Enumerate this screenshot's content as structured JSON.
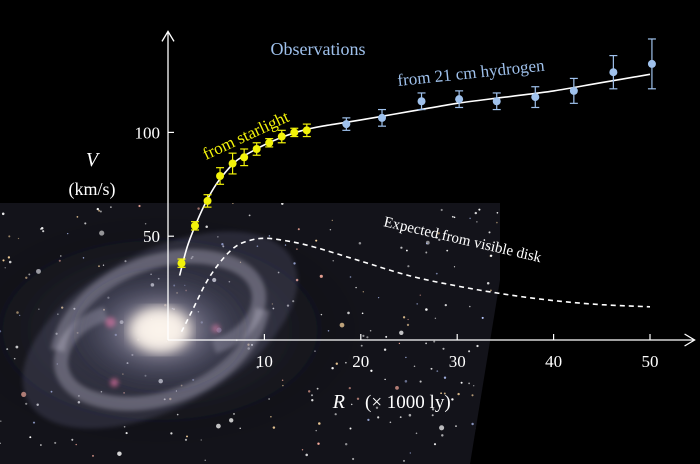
{
  "chart_data": {
    "type": "scatter",
    "xlabel_var": "R",
    "xlabel_unit": "(× 1000 ly)",
    "ylabel_var": "V",
    "ylabel_unit": "(km/s)",
    "xlim": [
      0,
      54
    ],
    "ylim": [
      0,
      140
    ],
    "x_ticks": [
      10,
      20,
      30,
      40,
      50
    ],
    "y_ticks": [
      50,
      100
    ],
    "title": "Observations",
    "series": [
      {
        "name": "from  starlight",
        "color": "#f2f20a",
        "points": [
          {
            "x": 1.4,
            "y": 37,
            "err": 2
          },
          {
            "x": 2.8,
            "y": 55,
            "err": 2
          },
          {
            "x": 4.1,
            "y": 67,
            "err": 3
          },
          {
            "x": 5.4,
            "y": 79,
            "err": 4
          },
          {
            "x": 6.7,
            "y": 85,
            "err": 5
          },
          {
            "x": 7.9,
            "y": 88,
            "err": 4
          },
          {
            "x": 9.2,
            "y": 92,
            "err": 3
          },
          {
            "x": 10.5,
            "y": 95,
            "err": 2
          },
          {
            "x": 11.8,
            "y": 98,
            "err": 3
          },
          {
            "x": 13.1,
            "y": 100,
            "err": 2
          },
          {
            "x": 14.4,
            "y": 101,
            "err": 3
          }
        ]
      },
      {
        "name": "from 21 cm hydrogen",
        "color": "#9fc1ec",
        "points": [
          {
            "x": 18.5,
            "y": 104,
            "err": 3
          },
          {
            "x": 22.2,
            "y": 107,
            "err": 4
          },
          {
            "x": 26.3,
            "y": 115,
            "err": 4
          },
          {
            "x": 30.2,
            "y": 116,
            "err": 4
          },
          {
            "x": 34.1,
            "y": 115,
            "err": 4
          },
          {
            "x": 38.1,
            "y": 117,
            "err": 5
          },
          {
            "x": 42.1,
            "y": 120,
            "err": 6
          },
          {
            "x": 46.2,
            "y": 129,
            "err": 8
          },
          {
            "x": 50.2,
            "y": 133,
            "err": 12
          }
        ]
      }
    ],
    "fit_curve": {
      "color": "#ffffff",
      "points": [
        [
          1.2,
          31
        ],
        [
          2,
          45
        ],
        [
          3,
          57
        ],
        [
          4,
          67
        ],
        [
          5,
          75
        ],
        [
          6,
          81
        ],
        [
          7,
          86
        ],
        [
          8,
          89
        ],
        [
          10,
          94
        ],
        [
          12,
          98
        ],
        [
          14,
          101
        ],
        [
          16,
          103
        ],
        [
          20,
          106
        ],
        [
          25,
          110
        ],
        [
          30,
          114
        ],
        [
          35,
          117
        ],
        [
          40,
          120
        ],
        [
          45,
          124
        ],
        [
          50,
          128
        ]
      ]
    },
    "expected_curve": {
      "label": "Expected from visible disk",
      "color": "#ffffff",
      "points": [
        [
          1.4,
          4
        ],
        [
          2.5,
          14
        ],
        [
          4,
          28
        ],
        [
          5.5,
          38
        ],
        [
          7,
          45
        ],
        [
          8.5,
          48
        ],
        [
          10,
          49
        ],
        [
          12,
          48
        ],
        [
          15,
          45
        ],
        [
          20,
          38
        ],
        [
          25,
          31
        ],
        [
          30,
          26
        ],
        [
          35,
          22
        ],
        [
          40,
          19
        ],
        [
          45,
          17
        ],
        [
          50,
          16
        ]
      ]
    }
  }
}
